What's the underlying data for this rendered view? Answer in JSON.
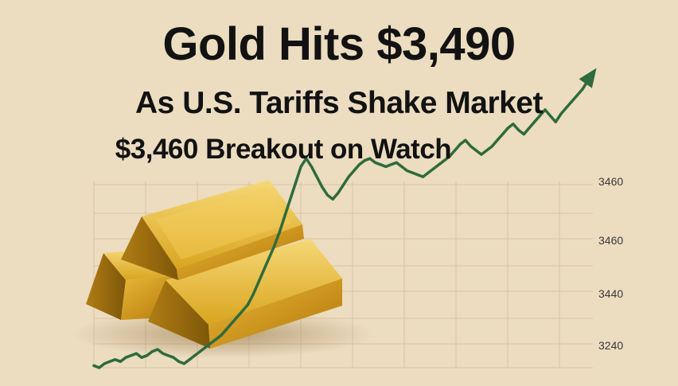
{
  "headline": {
    "title": "Gold Hits $3,490",
    "subtitle": "As U.S. Tariffs Shake Market",
    "tagline": "$3,460 Breakout on Watch"
  },
  "colors": {
    "background": "#ecdcc0",
    "line": "#2f6b3c",
    "grid": "#d9c3a4",
    "gold": "#d9a51e",
    "text": "#121212"
  },
  "icons": {
    "gold_bars": "gold-bars-illustration",
    "trend_arrow": "up-arrow-icon"
  },
  "chart_data": {
    "type": "line",
    "title": "",
    "xlabel": "",
    "ylabel": "",
    "y_tick_labels": [
      "3460",
      "3460",
      "3440",
      "3240"
    ],
    "grid": true,
    "end_arrow": true,
    "series": [
      {
        "values": [
          3240,
          3238,
          3242,
          3244,
          3246,
          3244,
          3248,
          3250,
          3252,
          3248,
          3250,
          3254,
          3256,
          3252,
          3250,
          3248,
          3244,
          3242,
          3246,
          3250,
          3254,
          3258,
          3262,
          3266,
          3270,
          3276,
          3282,
          3288,
          3294,
          3300,
          3310,
          3322,
          3334,
          3346,
          3358,
          3372,
          3388,
          3404,
          3420,
          3436,
          3444,
          3436,
          3426,
          3416,
          3408,
          3404,
          3410,
          3418,
          3426,
          3432,
          3438,
          3442,
          3444,
          3440,
          3438,
          3436,
          3438,
          3440,
          3436,
          3432,
          3430,
          3428,
          3426,
          3430,
          3434,
          3438,
          3442,
          3446,
          3452,
          3458,
          3462,
          3456,
          3452,
          3448,
          3452,
          3456,
          3462,
          3468,
          3474,
          3478,
          3472,
          3468,
          3474,
          3480,
          3486,
          3492,
          3486,
          3480,
          3488,
          3494,
          3500,
          3506,
          3512,
          3520,
          3528
        ]
      }
    ]
  }
}
